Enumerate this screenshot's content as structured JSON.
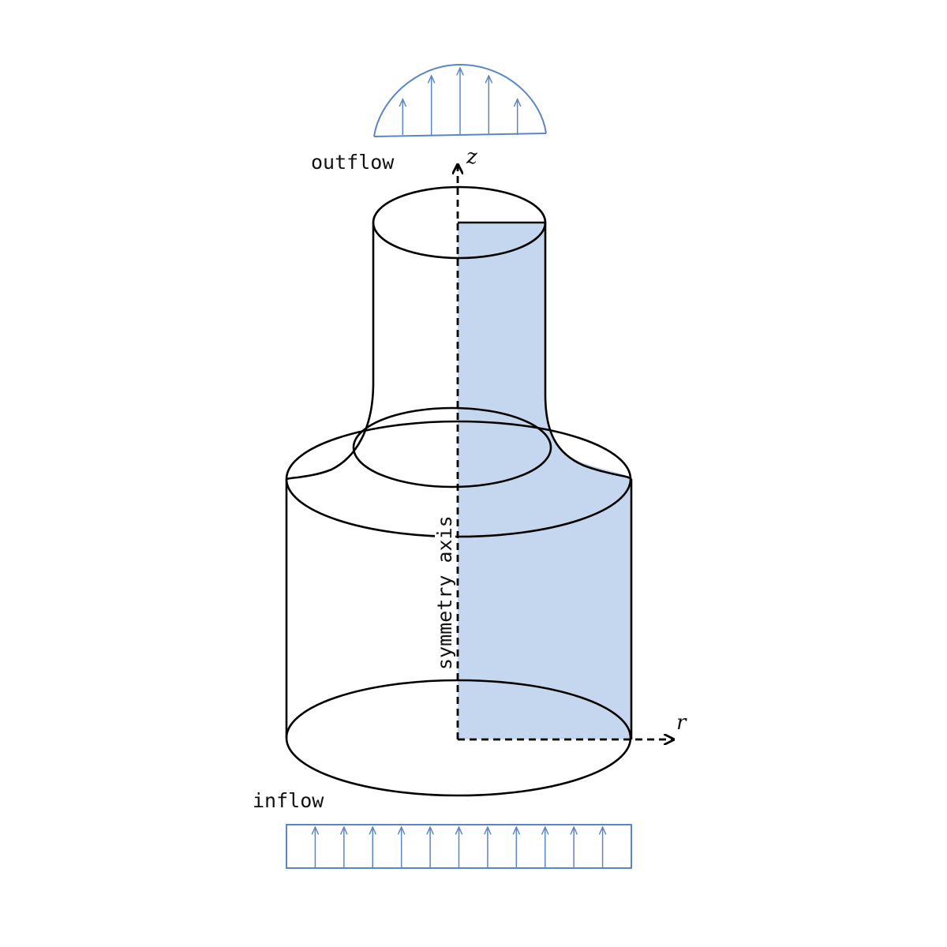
{
  "labels": {
    "outflow": "outflow",
    "inflow": "inflow",
    "symmetry_axis": "symmetry axis",
    "z_axis": "z",
    "r_axis": "r"
  },
  "colors": {
    "domain_fill": "#c5d7ee",
    "profile_stroke": "#5b86c4",
    "outline": "#000000"
  },
  "inflow_profile": {
    "shape": "uniform",
    "arrow_count": 11
  },
  "outflow_profile": {
    "shape": "parabolic",
    "arrow_count": 5
  }
}
